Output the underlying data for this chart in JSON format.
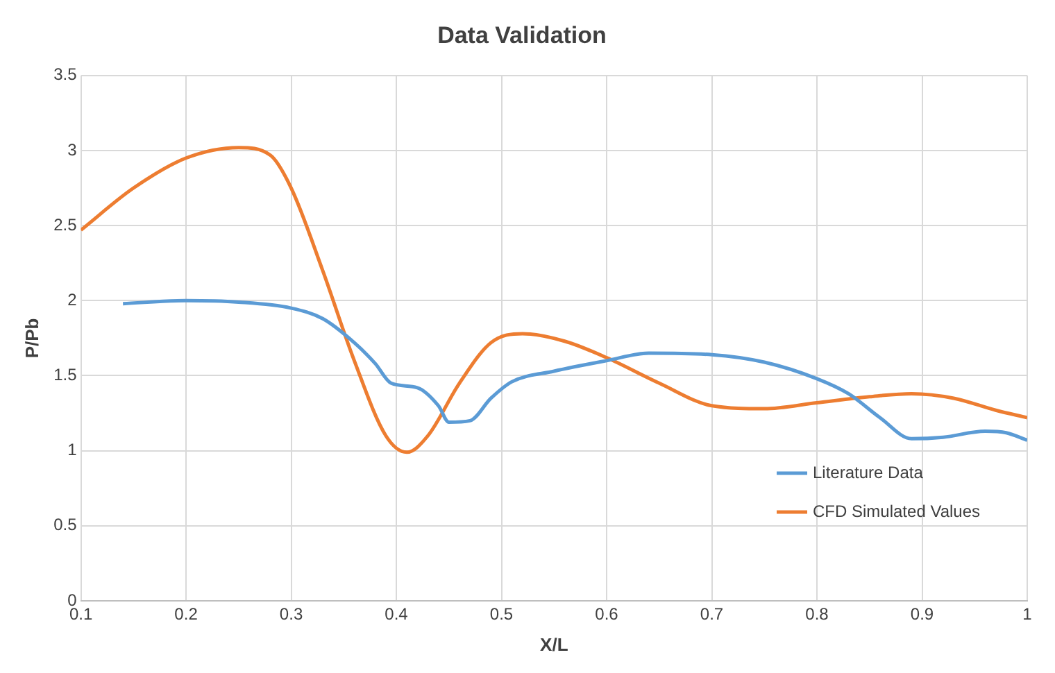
{
  "chart_data": {
    "type": "line",
    "title": "Data Validation",
    "xlabel": "X/L",
    "ylabel": "P/Pb",
    "xlim": [
      0.1,
      1
    ],
    "xticks": [
      0.1,
      0.2,
      0.3,
      0.4,
      0.5,
      0.6,
      0.7,
      0.8,
      0.9,
      1
    ],
    "ylim": [
      0,
      3.5
    ],
    "yticks": [
      0,
      0.5,
      1,
      1.5,
      2,
      2.5,
      3,
      3.5
    ],
    "grid": true,
    "legend": "bottom right",
    "marker": "none",
    "line_style": "solid",
    "series": [
      {
        "name": "Literature Data",
        "color": "#5b9bd5",
        "x": [
          0.14,
          0.2,
          0.25,
          0.3,
          0.33,
          0.36,
          0.38,
          0.395,
          0.42,
          0.44,
          0.45,
          0.47,
          0.49,
          0.51,
          0.55,
          0.6,
          0.64,
          0.7,
          0.75,
          0.8,
          0.83,
          0.86,
          0.89,
          0.92,
          0.96,
          0.98,
          1.0
        ],
        "values": [
          1.98,
          2.0,
          1.99,
          1.95,
          1.88,
          1.72,
          1.58,
          1.45,
          1.42,
          1.3,
          1.19,
          1.2,
          1.35,
          1.46,
          1.53,
          1.6,
          1.65,
          1.64,
          1.59,
          1.48,
          1.38,
          1.22,
          1.08,
          1.09,
          1.13,
          1.12,
          1.07
        ]
      },
      {
        "name": "CFD Simulated Values",
        "color": "#ed7d31",
        "x": [
          0.1,
          0.15,
          0.2,
          0.25,
          0.28,
          0.3,
          0.33,
          0.36,
          0.39,
          0.41,
          0.43,
          0.46,
          0.49,
          0.52,
          0.56,
          0.6,
          0.65,
          0.7,
          0.75,
          0.8,
          0.85,
          0.89,
          0.93,
          0.97,
          1.0
        ],
        "values": [
          2.47,
          2.75,
          2.95,
          3.02,
          2.97,
          2.75,
          2.2,
          1.6,
          1.1,
          0.99,
          1.1,
          1.45,
          1.72,
          1.78,
          1.73,
          1.62,
          1.45,
          1.3,
          1.28,
          1.32,
          1.36,
          1.38,
          1.35,
          1.27,
          1.22
        ]
      }
    ]
  }
}
